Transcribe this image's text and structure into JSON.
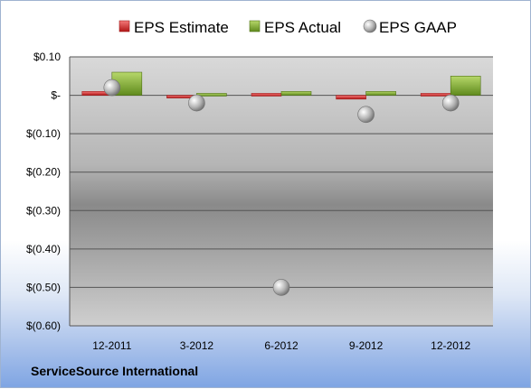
{
  "company_name": "ServiceSource International",
  "colors": {
    "estimate": "#e03b3b",
    "actual": "#8cbb3a",
    "gaap": "#b8b8b8"
  },
  "chart_data": {
    "type": "bar",
    "categories": [
      "12-2011",
      "3-2012",
      "6-2012",
      "9-2012",
      "12-2012"
    ],
    "ylim": [
      -0.6,
      0.1
    ],
    "y_ticks": [
      0.1,
      0,
      -0.1,
      -0.2,
      -0.3,
      -0.4,
      -0.5,
      -0.6
    ],
    "y_tick_labels": [
      "$0.10",
      "$-",
      "$(0.10)",
      "$(0.20)",
      "$(0.30)",
      "$(0.40)",
      "$(0.50)",
      "$(0.60)"
    ],
    "grid": true,
    "legend_position": "top",
    "series": [
      {
        "name": "EPS Estimate",
        "type": "bar",
        "values": [
          0.01,
          0.0,
          0.005,
          -0.01,
          0.005
        ]
      },
      {
        "name": "EPS Actual",
        "type": "bar",
        "values": [
          0.06,
          0.005,
          0.01,
          0.01,
          0.05
        ]
      },
      {
        "name": "EPS GAAP",
        "type": "scatter",
        "values": [
          0.02,
          -0.02,
          -0.5,
          -0.05,
          -0.02
        ]
      }
    ]
  }
}
